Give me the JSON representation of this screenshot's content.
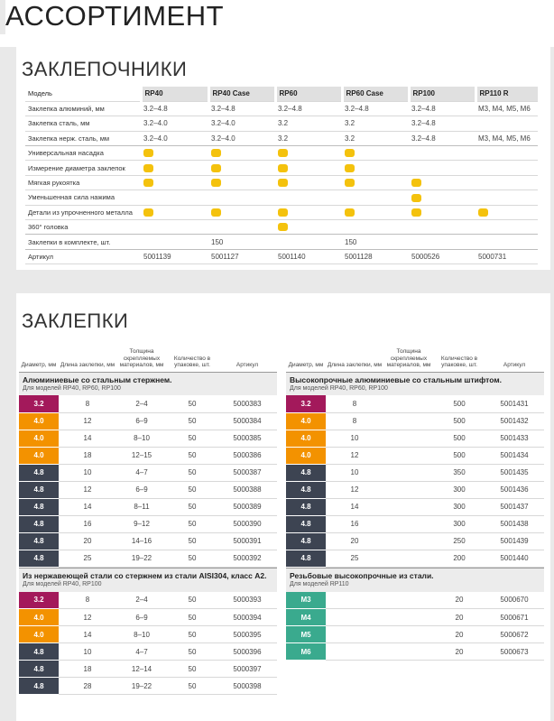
{
  "page_title": "АССОРТИМЕНТ",
  "tools": {
    "title": "ЗАКЛЕПОЧНИКИ",
    "model_label": "Модель",
    "models": [
      "RP40",
      "RP40 Case",
      "RP60",
      "RP60 Case",
      "RP100",
      "RP110 R"
    ],
    "rows": [
      {
        "label": "Заклепка алюминий, мм",
        "cells": [
          "3.2–4.8",
          "3.2–4.8",
          "3.2–4.8",
          "3.2–4.8",
          "3.2–4.8",
          "M3, M4, M5, M6"
        ]
      },
      {
        "label": "Заклепка сталь, мм",
        "cells": [
          "3.2–4.0",
          "3.2–4.0",
          "3.2",
          "3.2",
          "3.2–4.8",
          ""
        ]
      },
      {
        "label": "Заклепка нерж. сталь, мм",
        "cells": [
          "3.2–4.0",
          "3.2–4.0",
          "3.2",
          "3.2",
          "3.2–4.8",
          "M3, M4, M5, M6"
        ]
      },
      {
        "label": "Универсальная насадка",
        "dots": [
          true,
          true,
          true,
          true,
          false,
          false
        ]
      },
      {
        "label": "Измерение диаметра заклепок",
        "dots": [
          true,
          true,
          true,
          true,
          false,
          false
        ]
      },
      {
        "label": "Мягкая рукоятка",
        "dots": [
          true,
          true,
          true,
          true,
          true,
          false
        ]
      },
      {
        "label": "Уменьшенная сила нажима",
        "dots": [
          false,
          false,
          false,
          false,
          true,
          false
        ]
      },
      {
        "label": "Детали из упрочненного металла",
        "dots": [
          true,
          true,
          true,
          true,
          true,
          true
        ]
      },
      {
        "label": "360° головка",
        "dots": [
          false,
          false,
          true,
          false,
          false,
          false
        ]
      },
      {
        "label": "Заклепки в комплекте, шт.",
        "cells": [
          "",
          "150",
          "",
          "150",
          "",
          ""
        ]
      },
      {
        "label": "Артикул",
        "cells": [
          "5001139",
          "5001127",
          "5001140",
          "5001128",
          "5000526",
          "5000731"
        ]
      }
    ]
  },
  "rivets": {
    "title": "ЗАКЛЕПКИ",
    "headers": [
      "Диаметр, мм",
      "Длина заклепки, мм",
      "Толщина скрепляемых материалов, мм",
      "Количество в упаковке, шт.",
      "Артикул"
    ],
    "colors": {
      "3.2": "#a3195b",
      "4.0": "#f39200",
      "4.8": "#3d4452",
      "M": "#3aaa8e"
    },
    "groups": [
      {
        "title": "Алюминиевые со стальным стержнем.",
        "subtitle": "Для моделей RP40, RP60, RP100",
        "rows": [
          [
            "3.2",
            "8",
            "2–4",
            "50",
            "5000383"
          ],
          [
            "4.0",
            "12",
            "6–9",
            "50",
            "5000384"
          ],
          [
            "4.0",
            "14",
            "8–10",
            "50",
            "5000385"
          ],
          [
            "4.0",
            "18",
            "12–15",
            "50",
            "5000386"
          ],
          [
            "4.8",
            "10",
            "4–7",
            "50",
            "5000387"
          ],
          [
            "4.8",
            "12",
            "6–9",
            "50",
            "5000388"
          ],
          [
            "4.8",
            "14",
            "8–11",
            "50",
            "5000389"
          ],
          [
            "4.8",
            "16",
            "9–12",
            "50",
            "5000390"
          ],
          [
            "4.8",
            "20",
            "14–16",
            "50",
            "5000391"
          ],
          [
            "4.8",
            "25",
            "19–22",
            "50",
            "5000392"
          ]
        ]
      },
      {
        "title": "Высокопрочные алюминиевые со стальным штифтом.",
        "subtitle": "Для моделей RP40, RP60, RP100",
        "rows": [
          [
            "3.2",
            "8",
            "",
            "500",
            "5001431"
          ],
          [
            "4.0",
            "8",
            "",
            "500",
            "5001432"
          ],
          [
            "4.0",
            "10",
            "",
            "500",
            "5001433"
          ],
          [
            "4.0",
            "12",
            "",
            "500",
            "5001434"
          ],
          [
            "4.8",
            "10",
            "",
            "350",
            "5001435"
          ],
          [
            "4.8",
            "12",
            "",
            "300",
            "5001436"
          ],
          [
            "4.8",
            "14",
            "",
            "300",
            "5001437"
          ],
          [
            "4.8",
            "16",
            "",
            "300",
            "5001438"
          ],
          [
            "4.8",
            "20",
            "",
            "250",
            "5001439"
          ],
          [
            "4.8",
            "25",
            "",
            "200",
            "5001440"
          ]
        ]
      },
      {
        "title": "Из нержавеющей стали со стержнем из стали AISI304, класс A2.",
        "subtitle": "Для моделей RP40, RP100",
        "rows": [
          [
            "3.2",
            "8",
            "2–4",
            "50",
            "5000393"
          ],
          [
            "4.0",
            "12",
            "6–9",
            "50",
            "5000394"
          ],
          [
            "4.0",
            "14",
            "8–10",
            "50",
            "5000395"
          ],
          [
            "4.8",
            "10",
            "4–7",
            "50",
            "5000396"
          ],
          [
            "4.8",
            "18",
            "12–14",
            "50",
            "5000397"
          ],
          [
            "4.8",
            "28",
            "19–22",
            "50",
            "5000398"
          ]
        ]
      },
      {
        "title": "Резьбовые высокопрочные из стали.",
        "subtitle": "Для моделей RP110",
        "rows": [
          [
            "M3",
            "",
            "",
            "20",
            "5000670"
          ],
          [
            "M4",
            "",
            "",
            "20",
            "5000671"
          ],
          [
            "M5",
            "",
            "",
            "20",
            "5000672"
          ],
          [
            "M6",
            "",
            "",
            "20",
            "5000673"
          ]
        ]
      }
    ]
  }
}
